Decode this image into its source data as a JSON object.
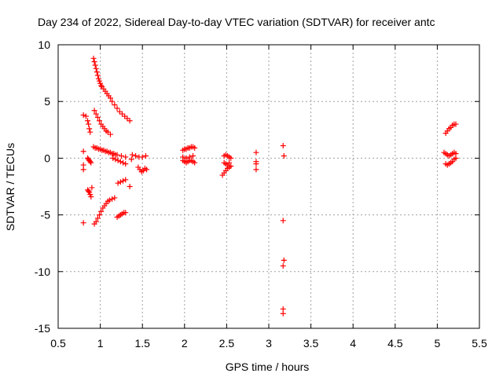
{
  "colors": {
    "points": "#ff0000",
    "axes": "#000000",
    "grid": "#a0a0a0",
    "background": "#ffffff"
  },
  "chart_data": {
    "type": "scatter",
    "title": "Day 234 of 2022, Sidereal Day-to-day VTEC variation (SDTVAR) for receiver antc",
    "xlabel": "GPS time / hours",
    "ylabel": "SDTVAR / TECUs",
    "xlim": [
      0.5,
      5.5
    ],
    "ylim": [
      -15,
      10
    ],
    "grid": true,
    "marker": "+",
    "xticks": [
      0.5,
      1,
      1.5,
      2,
      2.5,
      3,
      3.5,
      4,
      4.5,
      5,
      5.5
    ],
    "xtick_labels": [
      "0.5",
      "1",
      "1.5",
      "2",
      "2.5",
      "3",
      "3.5",
      "4",
      "4.5",
      "5",
      "5.5"
    ],
    "yticks": [
      -15,
      -10,
      -5,
      0,
      5,
      10
    ],
    "ytick_labels": [
      "-15",
      "-10",
      "-5",
      "0",
      "5",
      "10"
    ],
    "series": [
      {
        "name": "SDTVAR",
        "color": "#ff0000",
        "points": [
          [
            0.92,
            8.8
          ],
          [
            0.93,
            8.5
          ],
          [
            0.94,
            8.2
          ],
          [
            0.95,
            7.9
          ],
          [
            0.96,
            7.6
          ],
          [
            0.97,
            7.3
          ],
          [
            0.98,
            7.0
          ],
          [
            0.99,
            6.8
          ],
          [
            1.0,
            6.6
          ],
          [
            1.01,
            6.4
          ],
          [
            1.02,
            6.3
          ],
          [
            1.04,
            6.1
          ],
          [
            1.06,
            5.9
          ],
          [
            1.08,
            5.7
          ],
          [
            1.1,
            5.5
          ],
          [
            1.12,
            5.3
          ],
          [
            1.14,
            5.0
          ],
          [
            1.17,
            4.7
          ],
          [
            1.2,
            4.4
          ],
          [
            1.23,
            4.1
          ],
          [
            1.26,
            3.9
          ],
          [
            1.29,
            3.7
          ],
          [
            1.32,
            3.5
          ],
          [
            1.35,
            3.3
          ],
          [
            0.93,
            4.2
          ],
          [
            0.95,
            3.9
          ],
          [
            0.97,
            3.6
          ],
          [
            0.99,
            3.3
          ],
          [
            1.01,
            3.0
          ],
          [
            1.03,
            2.8
          ],
          [
            1.05,
            2.6
          ],
          [
            1.07,
            2.4
          ],
          [
            1.09,
            2.3
          ],
          [
            1.12,
            2.1
          ],
          [
            0.8,
            3.8
          ],
          [
            0.83,
            3.7
          ],
          [
            0.85,
            3.3
          ],
          [
            0.86,
            3.0
          ],
          [
            0.87,
            2.6
          ],
          [
            0.88,
            2.3
          ],
          [
            0.8,
            0.6
          ],
          [
            0.8,
            -0.6
          ],
          [
            0.8,
            -1.0
          ],
          [
            0.8,
            -5.7
          ],
          [
            0.92,
            1.0
          ],
          [
            0.94,
            0.9
          ],
          [
            0.96,
            0.9
          ],
          [
            0.98,
            0.8
          ],
          [
            1.0,
            0.8
          ],
          [
            1.02,
            0.7
          ],
          [
            1.04,
            0.7
          ],
          [
            1.06,
            0.6
          ],
          [
            1.08,
            0.6
          ],
          [
            1.1,
            0.5
          ],
          [
            1.12,
            0.5
          ],
          [
            1.14,
            0.4
          ],
          [
            1.16,
            0.4
          ],
          [
            1.18,
            0.3
          ],
          [
            0.85,
            0.0
          ],
          [
            0.86,
            -0.1
          ],
          [
            0.87,
            -0.2
          ],
          [
            0.88,
            -0.3
          ],
          [
            0.89,
            -0.4
          ],
          [
            1.15,
            0.0
          ],
          [
            1.18,
            -0.1
          ],
          [
            1.21,
            -0.2
          ],
          [
            1.24,
            -0.3
          ],
          [
            1.27,
            -0.4
          ],
          [
            1.3,
            -0.5
          ],
          [
            1.2,
            0.3
          ],
          [
            1.25,
            0.2
          ],
          [
            1.3,
            0.1
          ],
          [
            0.85,
            -2.8
          ],
          [
            0.86,
            -2.9
          ],
          [
            0.87,
            -3.0
          ],
          [
            0.88,
            -3.2
          ],
          [
            0.89,
            -3.4
          ],
          [
            0.9,
            -2.6
          ],
          [
            1.21,
            -2.2
          ],
          [
            1.24,
            -2.1
          ],
          [
            1.27,
            -2.0
          ],
          [
            1.3,
            -1.9
          ],
          [
            1.35,
            -2.5
          ],
          [
            1.37,
            -0.1
          ],
          [
            0.93,
            -5.8
          ],
          [
            0.95,
            -5.6
          ],
          [
            0.97,
            -5.3
          ],
          [
            0.99,
            -5.0
          ],
          [
            1.01,
            -4.7
          ],
          [
            1.03,
            -4.4
          ],
          [
            1.05,
            -4.2
          ],
          [
            1.07,
            -4.0
          ],
          [
            1.09,
            -3.8
          ],
          [
            1.11,
            -3.7
          ],
          [
            1.14,
            -3.6
          ],
          [
            1.17,
            -3.5
          ],
          [
            1.2,
            -5.2
          ],
          [
            1.22,
            -5.1
          ],
          [
            1.24,
            -5.0
          ],
          [
            1.26,
            -4.9
          ],
          [
            1.28,
            -4.8
          ],
          [
            1.3,
            -4.8
          ],
          [
            1.38,
            0.3
          ],
          [
            1.42,
            0.2
          ],
          [
            1.46,
            0.1
          ],
          [
            1.5,
            0.1
          ],
          [
            1.54,
            0.2
          ],
          [
            1.45,
            -0.8
          ],
          [
            1.47,
            -1.0
          ],
          [
            1.49,
            -1.2
          ],
          [
            1.51,
            -1.1
          ],
          [
            1.53,
            -0.9
          ],
          [
            1.55,
            -1.0
          ],
          [
            1.98,
            0.7
          ],
          [
            2.0,
            0.8
          ],
          [
            2.02,
            0.8
          ],
          [
            2.04,
            0.9
          ],
          [
            2.06,
            0.9
          ],
          [
            2.08,
            1.0
          ],
          [
            2.1,
            1.0
          ],
          [
            2.12,
            0.9
          ],
          [
            1.98,
            -0.2
          ],
          [
            2.0,
            -0.3
          ],
          [
            2.02,
            -0.4
          ],
          [
            2.04,
            -0.3
          ],
          [
            2.06,
            -0.2
          ],
          [
            2.08,
            -0.2
          ],
          [
            2.1,
            -0.3
          ],
          [
            2.12,
            -0.4
          ],
          [
            1.98,
            0.1
          ],
          [
            2.02,
            0.0
          ],
          [
            2.06,
            0.1
          ],
          [
            2.1,
            0.2
          ],
          [
            2.45,
            -1.5
          ],
          [
            2.47,
            -1.3
          ],
          [
            2.49,
            -1.1
          ],
          [
            2.51,
            -0.9
          ],
          [
            2.53,
            -0.8
          ],
          [
            2.55,
            -0.7
          ],
          [
            2.47,
            0.2
          ],
          [
            2.49,
            0.3
          ],
          [
            2.51,
            0.2
          ],
          [
            2.53,
            0.1
          ],
          [
            2.55,
            0.0
          ],
          [
            2.47,
            -0.4
          ],
          [
            2.49,
            -0.5
          ],
          [
            2.51,
            -0.6
          ],
          [
            2.53,
            -0.4
          ],
          [
            2.85,
            0.5
          ],
          [
            2.85,
            -0.3
          ],
          [
            2.85,
            -0.5
          ],
          [
            2.85,
            -1.0
          ],
          [
            3.17,
            1.1
          ],
          [
            3.18,
            0.2
          ],
          [
            3.17,
            -5.5
          ],
          [
            3.18,
            -9.0
          ],
          [
            3.17,
            -9.5
          ],
          [
            3.17,
            -13.3
          ],
          [
            3.17,
            -13.7
          ],
          [
            5.1,
            2.2
          ],
          [
            5.12,
            2.4
          ],
          [
            5.14,
            2.6
          ],
          [
            5.16,
            2.7
          ],
          [
            5.18,
            2.9
          ],
          [
            5.2,
            3.0
          ],
          [
            5.22,
            3.0
          ],
          [
            5.08,
            0.5
          ],
          [
            5.1,
            0.4
          ],
          [
            5.12,
            0.3
          ],
          [
            5.14,
            0.2
          ],
          [
            5.16,
            0.3
          ],
          [
            5.18,
            0.4
          ],
          [
            5.2,
            0.5
          ],
          [
            5.22,
            0.4
          ],
          [
            5.1,
            -0.5
          ],
          [
            5.12,
            -0.6
          ],
          [
            5.14,
            -0.5
          ],
          [
            5.16,
            -0.4
          ],
          [
            5.18,
            -0.3
          ],
          [
            5.2,
            -0.1
          ],
          [
            5.22,
            0.0
          ]
        ]
      }
    ]
  }
}
